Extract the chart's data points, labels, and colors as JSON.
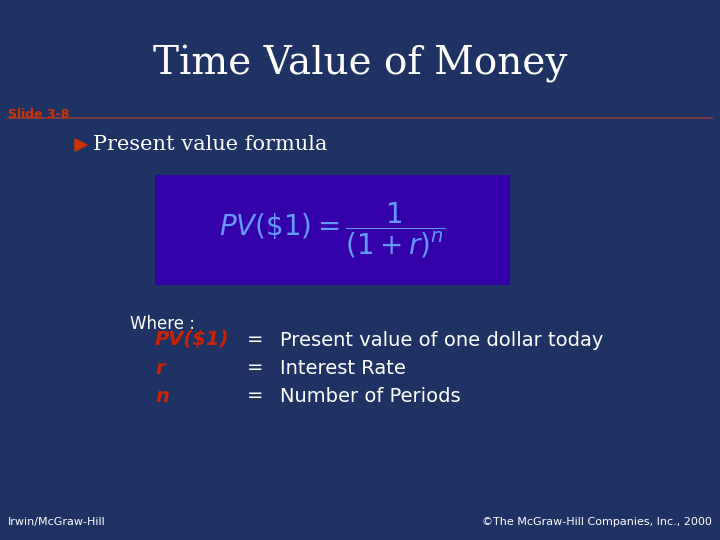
{
  "title": "Time Value of Money",
  "slide_label": "Slide 3-8",
  "bullet_char": "Ø",
  "bullet_text": "Present value formula",
  "formula_latex": "$PV(\\$1) = \\dfrac{1}{(1+r)^{n}}$",
  "where_label": "Where :",
  "definitions": [
    {
      "term": "PV($1)",
      "eq": "=",
      "desc": "Present value of one dollar today"
    },
    {
      "term": "r",
      "eq": "=",
      "desc": "Interest Rate"
    },
    {
      "term": "n",
      "eq": "=",
      "desc": "Number of Periods"
    }
  ],
  "footer_left": "Irwin/McGraw-Hill",
  "footer_right": "©The McGraw-Hill Companies, Inc., 2000",
  "bg_color": "#1F3264",
  "formula_box_color": "#3300AA",
  "title_color": "#FFFFFF",
  "slide_label_color": "#CC3300",
  "separator_color": "#8B3A3A",
  "bullet_color": "#FFFFFF",
  "bullet_arrow_color": "#CC3300",
  "where_color": "#FFFFFF",
  "term_color": "#CC2200",
  "desc_color": "#FFFFFF",
  "formula_color": "#6699FF",
  "footer_color": "#FFFFFF",
  "fig_width": 7.2,
  "fig_height": 5.4,
  "dpi": 100
}
